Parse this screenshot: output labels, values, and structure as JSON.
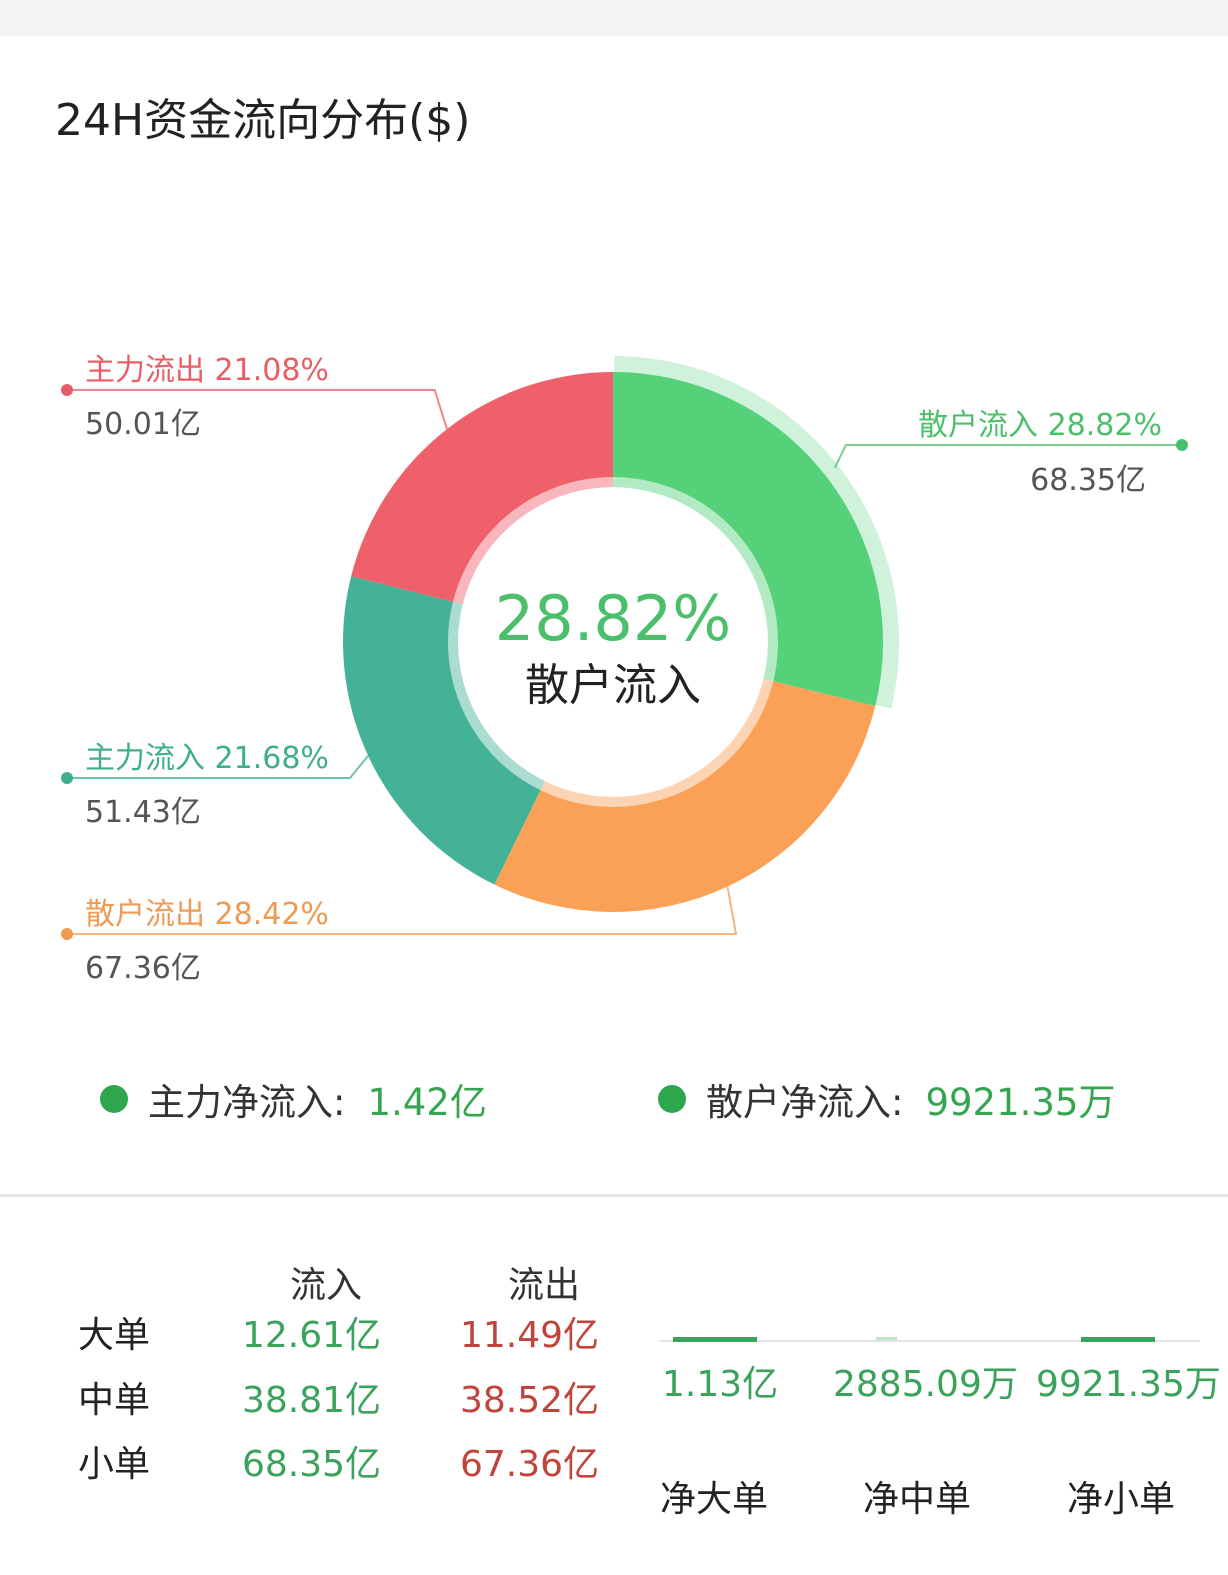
{
  "title": "24H资金流向分布($)",
  "chart_data": {
    "type": "pie",
    "donut": true,
    "center": {
      "value": "28.82%",
      "label": "散户流入"
    },
    "slices": [
      {
        "name": "散户流入",
        "percent": 28.82,
        "amount": "68.35亿",
        "label": "散户流入 28.82%",
        "color": "#55d17a",
        "highlighted": true
      },
      {
        "name": "散户流出",
        "percent": 28.42,
        "amount": "67.36亿",
        "label": "散户流出 28.42%",
        "color": "#fba157"
      },
      {
        "name": "主力流入",
        "percent": 21.68,
        "amount": "51.43亿",
        "label": "主力流入 21.68%",
        "color": "#44b296"
      },
      {
        "name": "主力流出",
        "percent": 21.08,
        "amount": "50.01亿",
        "label": "主力流出 21.08%",
        "color": "#f0606a"
      }
    ],
    "label_colors": {
      "散户流入": "#4cbf6c",
      "散户流出": "#ef9a52",
      "主力流入": "#3fae8e",
      "主力流出": "#ea5d66"
    }
  },
  "net": {
    "main_label": "主力净流入:",
    "main_value": "1.42亿",
    "retail_label": "散户净流入:",
    "retail_value": "9921.35万"
  },
  "table": {
    "headers": [
      "流入",
      "流出"
    ],
    "rows": [
      {
        "label": "大单",
        "in": "12.61亿",
        "out": "11.49亿"
      },
      {
        "label": "中单",
        "in": "38.81亿",
        "out": "38.52亿"
      },
      {
        "label": "小单",
        "in": "68.35亿",
        "out": "67.36亿"
      }
    ]
  },
  "net_orders": [
    {
      "label": "净大单",
      "value": "1.13亿",
      "amount": 1.13
    },
    {
      "label": "净中单",
      "value": "2885.09万",
      "amount": 0.2885
    },
    {
      "label": "净小单",
      "value": "9921.35万",
      "amount": 0.9921
    }
  ]
}
